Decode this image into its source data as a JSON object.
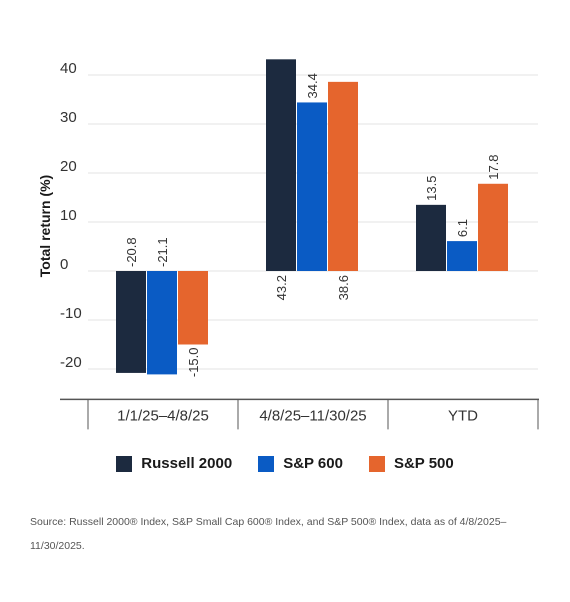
{
  "chart_data": {
    "type": "bar",
    "ylabel": "Total return (%)",
    "xlabel": "",
    "ylim": [
      -26,
      46
    ],
    "yticks": [
      40,
      30,
      20,
      10,
      0,
      -10,
      -20
    ],
    "ytick_labels": [
      "40",
      "30",
      "20",
      "10",
      "0",
      "-10",
      "-20"
    ],
    "grid": true,
    "legend_position": "bottom",
    "categories": [
      "1/1/25–4/8/25",
      "4/8/25–11/30/25",
      "YTD"
    ],
    "series": [
      {
        "name": "Russell 2000",
        "color": "#1c2a3f",
        "values": [
          -20.8,
          43.2,
          13.5
        ],
        "labels": [
          "-20.8",
          "43.2",
          "13.5"
        ]
      },
      {
        "name": "S&P 600",
        "color": "#0a5bc4",
        "values": [
          -21.1,
          34.4,
          6.1
        ],
        "labels": [
          "-21.1",
          "34.4",
          "6.1"
        ]
      },
      {
        "name": "S&P 500",
        "color": "#e5652d",
        "values": [
          -15.0,
          38.6,
          17.8
        ],
        "labels": [
          "-15.0",
          "38.6",
          "17.8"
        ]
      }
    ]
  },
  "legend": [
    {
      "label": "Russell 2000",
      "color": "#1c2a3f"
    },
    {
      "label": "S&P 600",
      "color": "#0a5bc4"
    },
    {
      "label": "S&P 500",
      "color": "#e5652d"
    }
  ],
  "source_text": "Source: Russell 2000® Index, S&P Small Cap 600® Index, and S&P 500® Index, data as of 4/8/2025–11/30/2025."
}
